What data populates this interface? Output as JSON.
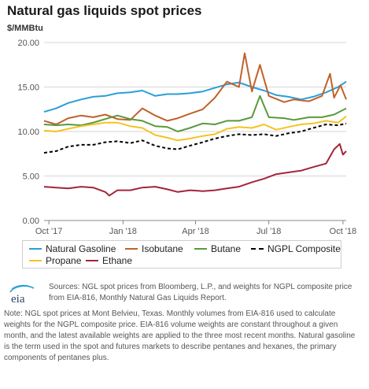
{
  "header": {
    "title": "Natural gas liquids spot prices",
    "unit": "$/MMBtu"
  },
  "chart_data": {
    "type": "line",
    "title": "Natural gas liquids spot prices",
    "ylabel": "$/MMBtu",
    "xlabel": "",
    "ylim": [
      0,
      20
    ],
    "xlim": [
      "2017-09-25",
      "2018-10-05"
    ],
    "y_ticks": [
      "0.00",
      "5.00",
      "10.00",
      "15.00",
      "20.00"
    ],
    "x_ticks": [
      {
        "label": "Oct '17",
        "date": "2017-10-01"
      },
      {
        "label": "Jan '18",
        "date": "2018-01-01"
      },
      {
        "label": "Apr '18",
        "date": "2018-04-01"
      },
      {
        "label": "Jul '18",
        "date": "2018-07-01"
      },
      {
        "label": "Oct '18",
        "date": "2018-10-01"
      }
    ],
    "grid": true,
    "legend_position": "bottom",
    "series": [
      {
        "name": "Natural Gasoline",
        "color": "#2a9fd6",
        "style": "solid",
        "points": [
          [
            "2017-09-25",
            12.2
          ],
          [
            "2017-10-10",
            12.6
          ],
          [
            "2017-10-25",
            13.2
          ],
          [
            "2017-11-10",
            13.6
          ],
          [
            "2017-11-25",
            13.9
          ],
          [
            "2017-12-10",
            14.0
          ],
          [
            "2017-12-25",
            14.3
          ],
          [
            "2018-01-10",
            14.4
          ],
          [
            "2018-01-25",
            14.6
          ],
          [
            "2018-02-10",
            14.0
          ],
          [
            "2018-02-25",
            14.2
          ],
          [
            "2018-03-10",
            14.2
          ],
          [
            "2018-03-25",
            14.3
          ],
          [
            "2018-04-10",
            14.5
          ],
          [
            "2018-04-25",
            14.9
          ],
          [
            "2018-05-10",
            15.3
          ],
          [
            "2018-05-25",
            15.5
          ],
          [
            "2018-06-10",
            15.0
          ],
          [
            "2018-06-25",
            14.6
          ],
          [
            "2018-07-10",
            14.1
          ],
          [
            "2018-07-25",
            13.9
          ],
          [
            "2018-08-10",
            13.6
          ],
          [
            "2018-08-25",
            13.9
          ],
          [
            "2018-09-10",
            14.4
          ],
          [
            "2018-09-25",
            15.0
          ],
          [
            "2018-10-05",
            15.6
          ]
        ]
      },
      {
        "name": "Isobutane",
        "color": "#c0612b",
        "style": "solid",
        "points": [
          [
            "2017-09-25",
            11.2
          ],
          [
            "2017-10-10",
            10.8
          ],
          [
            "2017-10-25",
            11.5
          ],
          [
            "2017-11-10",
            11.8
          ],
          [
            "2017-11-25",
            11.6
          ],
          [
            "2017-12-10",
            11.9
          ],
          [
            "2017-12-25",
            11.4
          ],
          [
            "2018-01-10",
            11.3
          ],
          [
            "2018-01-25",
            12.6
          ],
          [
            "2018-02-10",
            11.8
          ],
          [
            "2018-02-25",
            11.2
          ],
          [
            "2018-03-10",
            11.5
          ],
          [
            "2018-03-25",
            12.0
          ],
          [
            "2018-04-10",
            12.5
          ],
          [
            "2018-04-25",
            13.8
          ],
          [
            "2018-05-10",
            15.6
          ],
          [
            "2018-05-25",
            15.0
          ],
          [
            "2018-06-01",
            18.8
          ],
          [
            "2018-06-10",
            14.5
          ],
          [
            "2018-06-20",
            17.5
          ],
          [
            "2018-07-01",
            14.0
          ],
          [
            "2018-07-20",
            13.3
          ],
          [
            "2018-08-01",
            13.6
          ],
          [
            "2018-08-20",
            13.4
          ],
          [
            "2018-09-05",
            14.0
          ],
          [
            "2018-09-15",
            16.5
          ],
          [
            "2018-09-20",
            13.8
          ],
          [
            "2018-09-28",
            15.2
          ],
          [
            "2018-10-05",
            13.6
          ]
        ]
      },
      {
        "name": "Butane",
        "color": "#5a9a3b",
        "style": "solid",
        "points": [
          [
            "2017-09-25",
            10.8
          ],
          [
            "2017-10-10",
            10.7
          ],
          [
            "2017-10-25",
            10.8
          ],
          [
            "2017-11-10",
            10.7
          ],
          [
            "2017-11-25",
            11.0
          ],
          [
            "2017-12-10",
            11.4
          ],
          [
            "2017-12-25",
            11.8
          ],
          [
            "2018-01-10",
            11.4
          ],
          [
            "2018-01-25",
            11.2
          ],
          [
            "2018-02-10",
            10.6
          ],
          [
            "2018-02-25",
            10.5
          ],
          [
            "2018-03-10",
            10.0
          ],
          [
            "2018-03-25",
            10.4
          ],
          [
            "2018-04-10",
            10.9
          ],
          [
            "2018-04-25",
            10.8
          ],
          [
            "2018-05-10",
            11.2
          ],
          [
            "2018-05-25",
            11.2
          ],
          [
            "2018-06-10",
            11.6
          ],
          [
            "2018-06-20",
            14.0
          ],
          [
            "2018-07-01",
            11.6
          ],
          [
            "2018-07-20",
            11.5
          ],
          [
            "2018-08-01",
            11.3
          ],
          [
            "2018-08-20",
            11.6
          ],
          [
            "2018-09-05",
            11.6
          ],
          [
            "2018-09-20",
            11.9
          ],
          [
            "2018-10-05",
            12.6
          ]
        ]
      },
      {
        "name": "NGPL Composite",
        "color": "#000000",
        "style": "dashed",
        "points": [
          [
            "2017-09-25",
            7.6
          ],
          [
            "2017-10-10",
            7.8
          ],
          [
            "2017-10-25",
            8.3
          ],
          [
            "2017-11-10",
            8.5
          ],
          [
            "2017-11-25",
            8.5
          ],
          [
            "2017-12-10",
            8.8
          ],
          [
            "2017-12-25",
            8.9
          ],
          [
            "2018-01-10",
            8.7
          ],
          [
            "2018-01-25",
            9.0
          ],
          [
            "2018-02-10",
            8.4
          ],
          [
            "2018-02-25",
            8.1
          ],
          [
            "2018-03-10",
            8.0
          ],
          [
            "2018-03-25",
            8.4
          ],
          [
            "2018-04-10",
            8.8
          ],
          [
            "2018-04-25",
            9.2
          ],
          [
            "2018-05-10",
            9.5
          ],
          [
            "2018-05-25",
            9.7
          ],
          [
            "2018-06-10",
            9.6
          ],
          [
            "2018-06-25",
            9.7
          ],
          [
            "2018-07-10",
            9.5
          ],
          [
            "2018-07-25",
            9.8
          ],
          [
            "2018-08-10",
            10.0
          ],
          [
            "2018-08-25",
            10.4
          ],
          [
            "2018-09-10",
            10.8
          ],
          [
            "2018-09-25",
            10.7
          ],
          [
            "2018-10-05",
            10.9
          ]
        ]
      },
      {
        "name": "Propane",
        "color": "#f5c322",
        "style": "solid",
        "points": [
          [
            "2017-09-25",
            10.1
          ],
          [
            "2017-10-10",
            10.0
          ],
          [
            "2017-10-25",
            10.3
          ],
          [
            "2017-11-10",
            10.6
          ],
          [
            "2017-11-25",
            10.8
          ],
          [
            "2017-12-10",
            11.0
          ],
          [
            "2017-12-25",
            11.0
          ],
          [
            "2018-01-10",
            10.6
          ],
          [
            "2018-01-25",
            10.4
          ],
          [
            "2018-02-10",
            9.6
          ],
          [
            "2018-02-25",
            9.3
          ],
          [
            "2018-03-10",
            9.0
          ],
          [
            "2018-03-25",
            9.2
          ],
          [
            "2018-04-10",
            9.5
          ],
          [
            "2018-04-25",
            9.7
          ],
          [
            "2018-05-10",
            10.3
          ],
          [
            "2018-05-25",
            10.5
          ],
          [
            "2018-06-10",
            10.4
          ],
          [
            "2018-06-25",
            10.8
          ],
          [
            "2018-07-10",
            10.2
          ],
          [
            "2018-07-25",
            10.5
          ],
          [
            "2018-08-10",
            10.8
          ],
          [
            "2018-08-25",
            10.9
          ],
          [
            "2018-09-10",
            11.2
          ],
          [
            "2018-09-25",
            11.0
          ],
          [
            "2018-10-05",
            11.7
          ]
        ]
      },
      {
        "name": "Ethane",
        "color": "#a3253a",
        "style": "solid",
        "points": [
          [
            "2017-09-25",
            3.8
          ],
          [
            "2017-10-10",
            3.7
          ],
          [
            "2017-10-25",
            3.6
          ],
          [
            "2017-11-10",
            3.8
          ],
          [
            "2017-11-25",
            3.7
          ],
          [
            "2017-12-10",
            3.2
          ],
          [
            "2017-12-15",
            2.8
          ],
          [
            "2017-12-25",
            3.4
          ],
          [
            "2018-01-10",
            3.4
          ],
          [
            "2018-01-25",
            3.7
          ],
          [
            "2018-02-10",
            3.8
          ],
          [
            "2018-02-25",
            3.5
          ],
          [
            "2018-03-10",
            3.2
          ],
          [
            "2018-03-25",
            3.4
          ],
          [
            "2018-04-10",
            3.3
          ],
          [
            "2018-04-25",
            3.4
          ],
          [
            "2018-05-10",
            3.6
          ],
          [
            "2018-05-25",
            3.8
          ],
          [
            "2018-06-10",
            4.3
          ],
          [
            "2018-06-25",
            4.7
          ],
          [
            "2018-07-10",
            5.2
          ],
          [
            "2018-07-25",
            5.4
          ],
          [
            "2018-08-10",
            5.6
          ],
          [
            "2018-08-25",
            6.0
          ],
          [
            "2018-09-10",
            6.4
          ],
          [
            "2018-09-20",
            8.0
          ],
          [
            "2018-09-27",
            8.6
          ],
          [
            "2018-10-01",
            7.4
          ],
          [
            "2018-10-05",
            7.8
          ]
        ]
      }
    ]
  },
  "legend": {
    "items": [
      {
        "label": "Natural Gasoline",
        "color": "#2a9fd6",
        "dashed": false
      },
      {
        "label": "Isobutane",
        "color": "#c0612b",
        "dashed": false
      },
      {
        "label": "Butane",
        "color": "#5a9a3b",
        "dashed": false
      },
      {
        "label": "NGPL Composite",
        "color": "#000000",
        "dashed": true
      },
      {
        "label": "Propane",
        "color": "#f5c322",
        "dashed": false
      },
      {
        "label": "Ethane",
        "color": "#a3253a",
        "dashed": false
      }
    ]
  },
  "footer": {
    "logo_text": "eia",
    "sources": "Sources: NGL spot prices from Bloomberg, L.P., and weights for NGPL composite price from EIA-816, Monthly Natural Gas Liquids Report.",
    "note": "Note: NGL spot prices at Mont Belvieu, Texas. Monthly volumes from EIA-816 used to calculate weights for the NGPL composite price. EIA-816 volume weights are constant throughout a given month, and the latest available weights are applied to the three most recent months. Natural gasoline is the term used in the spot and futures markets to describe pentanes and hexanes, the primary components of pentanes plus."
  }
}
